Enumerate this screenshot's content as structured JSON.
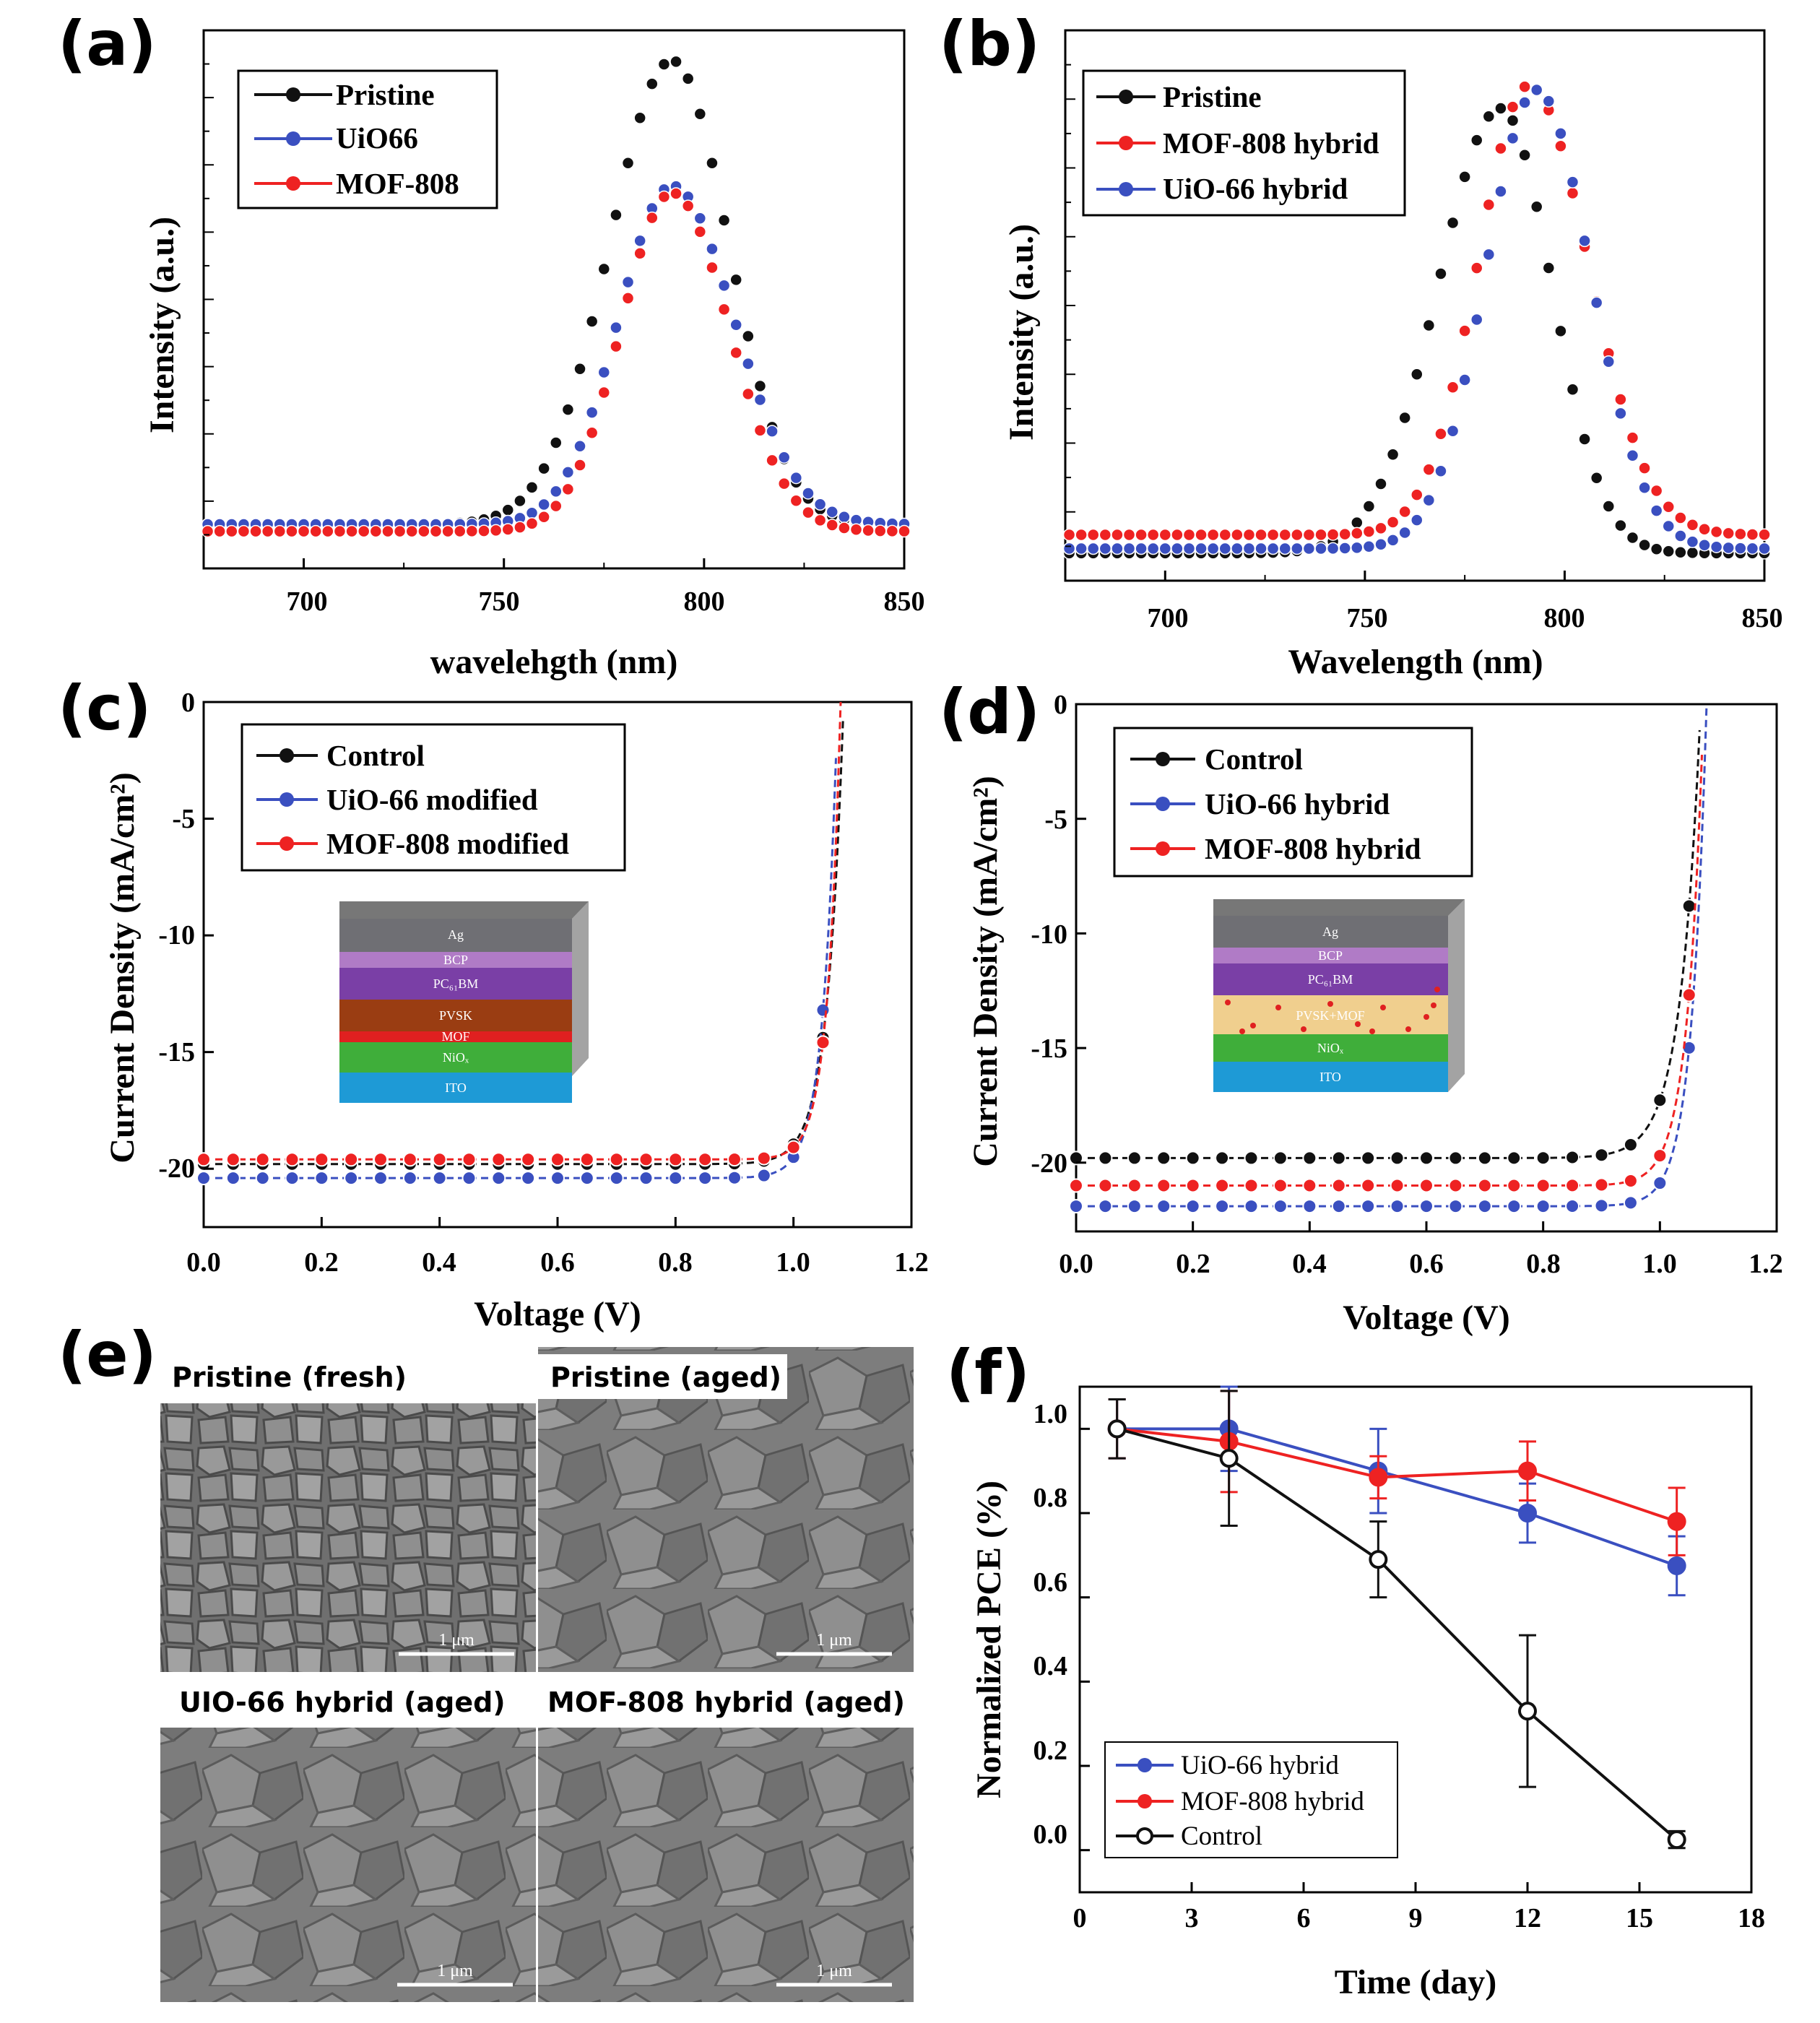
{
  "colors": {
    "black": "#111111",
    "blue": "#3a4fc0",
    "red": "#ee2222"
  },
  "panels": {
    "a": {
      "label": "(a)",
      "chart_data": {
        "type": "scatter",
        "xlabel": "wavelehgth (nm)",
        "ylabel": "Intensity (a.u.)",
        "xlim": [
          675,
          850
        ],
        "ylim": [
          -0.08,
          1.08
        ],
        "xticks": [
          "700",
          "750",
          "800",
          "850"
        ],
        "x": {
          "start": 676,
          "end": 850,
          "step": 3
        },
        "series": [
          {
            "name": "Pristine",
            "color": "black",
            "peak": 792,
            "height": 1.0,
            "wl": 22,
            "wr": 20,
            "base": 0.015
          },
          {
            "name": "UiO66",
            "color": "blue",
            "peak": 792,
            "height": 0.73,
            "wl": 19,
            "wr": 22,
            "base": 0.015
          },
          {
            "name": "MOF-808",
            "color": "red",
            "peak": 792,
            "height": 0.73,
            "wl": 18,
            "wr": 20,
            "base": 0.0
          }
        ]
      }
    },
    "b": {
      "label": "(b)",
      "chart_data": {
        "type": "scatter",
        "xlabel": "Wavelength (nm)",
        "ylabel": "Intensity (a.u.)",
        "xlim": [
          675,
          850
        ],
        "ylim": [
          -0.1,
          1.1
        ],
        "xticks": [
          "700",
          "750",
          "800",
          "850"
        ],
        "x": {
          "start": 676,
          "end": 850,
          "step": 3
        },
        "series": [
          {
            "name": "Pristine",
            "color": "black",
            "peak": 784,
            "height": 0.97,
            "wl": 22,
            "wr": 18,
            "base": -0.04
          },
          {
            "name": "MOF-808 hybrid",
            "color": "red",
            "peak": 791,
            "height": 0.98,
            "wl": 18,
            "wr": 21,
            "base": 0.0
          },
          {
            "name": "UiO-66 hybrid",
            "color": "blue",
            "peak": 793,
            "height": 1.0,
            "wl": 18,
            "wr": 19,
            "base": -0.03
          }
        ]
      }
    },
    "c": {
      "label": "(c)",
      "chart_data": {
        "type": "line",
        "xlabel": "Voltage (V)",
        "ylabel": "Current Density (mA/cm²)",
        "xlim": [
          0.0,
          1.2
        ],
        "ylim": [
          -22.5,
          0
        ],
        "xticks": [
          "0.0",
          "0.2",
          "0.4",
          "0.6",
          "0.8",
          "1.0",
          "1.2"
        ],
        "yticks": [
          "0",
          "-5",
          "-10",
          "-15",
          "-20"
        ],
        "x": {
          "start": 0.0,
          "end": 1.05,
          "step": 0.05
        },
        "series": [
          {
            "name": "Control",
            "color": "black",
            "jsc": 19.8,
            "voc": 1.085,
            "n": 0.027
          },
          {
            "name": "UiO-66 modified",
            "color": "blue",
            "jsc": 20.4,
            "voc": 1.075,
            "n": 0.024
          },
          {
            "name": "MOF-808 modified",
            "color": "red",
            "jsc": 19.6,
            "voc": 1.08,
            "n": 0.022
          }
        ],
        "inset": {
          "layers": [
            "Ag",
            "BCP",
            "PC₆₁BM",
            "PVSK",
            "MOF",
            "NiOₓ",
            "ITO"
          ]
        }
      }
    },
    "d": {
      "label": "(d)",
      "chart_data": {
        "type": "line",
        "xlabel": "Voltage (V)",
        "ylabel": "Current Density (mA/cm²)",
        "xlim": [
          0.0,
          1.2
        ],
        "ylim": [
          -23,
          0
        ],
        "xticks": [
          "0.0",
          "0.2",
          "0.4",
          "0.6",
          "0.8",
          "1.0",
          "1.2"
        ],
        "yticks": [
          "0",
          "-5",
          "-10",
          "-15",
          "-20"
        ],
        "x": {
          "start": 0.0,
          "end": 1.05,
          "step": 0.05
        },
        "series": [
          {
            "name": "Control",
            "color": "black",
            "jsc": 19.8,
            "voc": 1.07,
            "n": 0.034
          },
          {
            "name": "UiO-66 hybrid",
            "color": "blue",
            "jsc": 21.9,
            "voc": 1.08,
            "n": 0.026
          },
          {
            "name": "MOF-808 hybrid",
            "color": "red",
            "jsc": 21.0,
            "voc": 1.075,
            "n": 0.027
          }
        ],
        "inset": {
          "layers": [
            "Ag",
            "BCP",
            "PC₆₁BM",
            "PVSK+MOF",
            "NiOₓ",
            "ITO"
          ]
        }
      }
    },
    "e": {
      "label": "(e)",
      "images": [
        {
          "title": "Pristine (fresh)",
          "scale": "1 μm"
        },
        {
          "title": "Pristine (aged)",
          "scale": "1 μm"
        },
        {
          "title": "UIO-66 hybrid (aged)",
          "scale": "1 μm"
        },
        {
          "title": "MOF-808 hybrid (aged)",
          "scale": "1 μm"
        }
      ]
    },
    "f": {
      "label": "(f)",
      "chart_data": {
        "type": "line",
        "xlabel": "Time (day)",
        "ylabel": "Normalized PCE (%)",
        "xlim": [
          0,
          18
        ],
        "ylim": [
          -0.1,
          1.1
        ],
        "xticks": [
          "0",
          "3",
          "6",
          "9",
          "12",
          "15",
          "18"
        ],
        "yticks": [
          "0.0",
          "0.2",
          "0.4",
          "0.6",
          "0.8",
          "1.0"
        ],
        "series": [
          {
            "name": "UiO-66 hybrid",
            "color": "blue",
            "x": [
              1,
              4,
              8,
              12,
              16
            ],
            "y": [
              1.0,
              1.0,
              0.9,
              0.8,
              0.675
            ],
            "err": [
              0.07,
              0.1,
              0.1,
              0.07,
              0.07
            ]
          },
          {
            "name": "MOF-808 hybrid",
            "color": "red",
            "x": [
              1,
              4,
              8,
              12,
              16
            ],
            "y": [
              1.0,
              0.97,
              0.885,
              0.9,
              0.78
            ],
            "err": [
              0.07,
              0.12,
              0.05,
              0.07,
              0.08
            ]
          },
          {
            "name": "Control",
            "color": "black",
            "x": [
              1,
              4,
              8,
              12,
              16
            ],
            "y": [
              1.0,
              0.93,
              0.69,
              0.33,
              0.025
            ],
            "err": [
              0.07,
              0.16,
              0.09,
              0.18,
              0.02
            ]
          }
        ]
      }
    }
  }
}
